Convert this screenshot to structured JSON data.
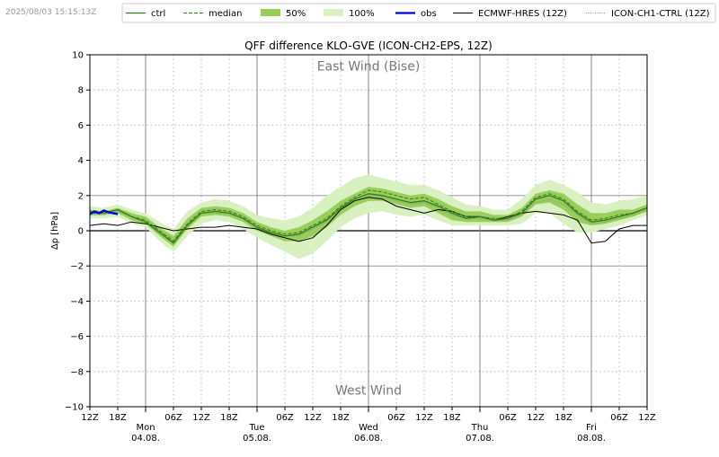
{
  "timestamp": "2025/08/03 15:15:13Z",
  "chart_data": {
    "type": "line",
    "title": "QFF difference KLO-GVE (ICON-CH2-EPS, 12Z)",
    "xlabel": "",
    "ylabel": "Δp [hPa]",
    "ylim": [
      -10,
      10
    ],
    "yticks": [
      -10,
      -8,
      -6,
      -4,
      -2,
      0,
      2,
      4,
      6,
      8,
      10
    ],
    "xlim_hours": [
      0,
      120
    ],
    "x_unit": "hours since 2025-08-03 12Z",
    "hour_ticks": [
      {
        "h": 0,
        "label": "12Z"
      },
      {
        "h": 6,
        "label": "18Z"
      },
      {
        "h": 18,
        "label": "06Z"
      },
      {
        "h": 24,
        "label": "12Z"
      },
      {
        "h": 30,
        "label": "18Z"
      },
      {
        "h": 42,
        "label": "06Z"
      },
      {
        "h": 48,
        "label": "12Z"
      },
      {
        "h": 54,
        "label": "18Z"
      },
      {
        "h": 66,
        "label": "06Z"
      },
      {
        "h": 72,
        "label": "12Z"
      },
      {
        "h": 78,
        "label": "18Z"
      },
      {
        "h": 90,
        "label": "06Z"
      },
      {
        "h": 96,
        "label": "12Z"
      },
      {
        "h": 102,
        "label": "18Z"
      },
      {
        "h": 114,
        "label": "06Z"
      },
      {
        "h": 120,
        "label": "12Z"
      }
    ],
    "day_ticks": [
      {
        "h": 12,
        "day": "Mon",
        "date": "04.08."
      },
      {
        "h": 36,
        "day": "Tue",
        "date": "05.08."
      },
      {
        "h": 60,
        "day": "Wed",
        "date": "06.08."
      },
      {
        "h": 84,
        "day": "Thu",
        "date": "07.08."
      },
      {
        "h": 108,
        "day": "Fri",
        "date": "08.08."
      }
    ],
    "annotations": {
      "top": "East Wind (Bise)",
      "bottom": "West Wind"
    },
    "legend": {
      "placement": "top",
      "entries": [
        "ctrl",
        "median",
        "50%",
        "100%",
        "obs",
        "ECMWF-HRES (12Z)",
        "ICON-CH1-CTRL (12Z)"
      ]
    },
    "colors": {
      "ctrl": "#2e7d1e",
      "median": "#2e7d1e",
      "p50": "#9acd5a",
      "p100": "#d9f0c0",
      "obs": "#0000dd",
      "ecmwf": "#000000",
      "iconch1": "#888888"
    },
    "x": [
      0,
      3,
      6,
      9,
      12,
      15,
      18,
      21,
      24,
      27,
      30,
      33,
      36,
      39,
      42,
      45,
      48,
      51,
      54,
      57,
      60,
      63,
      66,
      69,
      72,
      75,
      78,
      81,
      84,
      87,
      90,
      93,
      96,
      99,
      102,
      105,
      108,
      111,
      114,
      117,
      120
    ],
    "series": {
      "ctrl": [
        1.0,
        1.0,
        1.2,
        0.8,
        0.5,
        -0.1,
        -0.7,
        0.3,
        1.0,
        1.1,
        1.0,
        0.7,
        0.2,
        -0.1,
        -0.3,
        -0.2,
        0.2,
        0.6,
        1.3,
        1.8,
        2.1,
        2.0,
        1.8,
        1.6,
        1.7,
        1.4,
        1.0,
        0.7,
        0.8,
        0.6,
        0.7,
        1.0,
        1.8,
        2.0,
        1.7,
        1.0,
        0.5,
        0.6,
        0.8,
        1.0,
        1.3
      ],
      "median": [
        1.1,
        1.0,
        1.2,
        0.8,
        0.6,
        0.0,
        -0.6,
        0.4,
        1.1,
        1.2,
        1.1,
        0.8,
        0.3,
        0.0,
        -0.2,
        -0.1,
        0.3,
        0.7,
        1.4,
        1.9,
        2.3,
        2.2,
        2.0,
        1.8,
        1.9,
        1.5,
        1.1,
        0.8,
        0.8,
        0.7,
        0.7,
        1.1,
        1.9,
        2.1,
        1.8,
        1.1,
        0.6,
        0.7,
        0.9,
        1.0,
        1.3
      ],
      "p50_low": [
        0.9,
        0.9,
        1.0,
        0.6,
        0.4,
        -0.3,
        -0.9,
        0.1,
        0.8,
        0.9,
        0.8,
        0.5,
        0.0,
        -0.3,
        -0.6,
        -0.6,
        -0.3,
        0.2,
        0.9,
        1.4,
        1.7,
        1.7,
        1.5,
        1.3,
        1.4,
        1.0,
        0.6,
        0.5,
        0.5,
        0.5,
        0.5,
        0.8,
        1.5,
        1.6,
        1.2,
        0.5,
        0.3,
        0.4,
        0.6,
        0.8,
        1.1
      ],
      "p50_high": [
        1.2,
        1.1,
        1.3,
        1.0,
        0.8,
        0.2,
        -0.3,
        0.7,
        1.3,
        1.4,
        1.3,
        1.0,
        0.5,
        0.2,
        0.0,
        0.2,
        0.6,
        1.1,
        1.7,
        2.1,
        2.5,
        2.4,
        2.2,
        2.0,
        2.1,
        1.8,
        1.4,
        1.1,
        1.1,
        0.9,
        0.9,
        1.3,
        2.1,
        2.3,
        2.1,
        1.5,
        1.0,
        1.0,
        1.2,
        1.2,
        1.5
      ],
      "p100_low": [
        0.7,
        0.7,
        0.8,
        0.4,
        0.2,
        -0.6,
        -1.2,
        -0.3,
        0.4,
        0.6,
        0.5,
        0.1,
        -0.4,
        -0.8,
        -1.2,
        -1.6,
        -1.3,
        -0.6,
        0.2,
        0.7,
        1.0,
        1.1,
        0.9,
        0.8,
        0.9,
        0.6,
        0.3,
        0.3,
        0.3,
        0.3,
        0.3,
        0.4,
        1.0,
        1.0,
        0.4,
        -0.1,
        -0.1,
        0.1,
        0.3,
        0.6,
        0.9
      ],
      "p100_high": [
        1.4,
        1.3,
        1.5,
        1.2,
        1.0,
        0.5,
        0.1,
        1.1,
        1.6,
        1.8,
        1.7,
        1.4,
        0.9,
        0.7,
        0.6,
        0.8,
        1.3,
        2.0,
        2.5,
        3.0,
        3.2,
        3.0,
        2.8,
        2.6,
        2.6,
        2.3,
        1.9,
        1.5,
        1.4,
        1.2,
        1.2,
        1.8,
        2.6,
        2.9,
        2.6,
        2.2,
        1.6,
        1.5,
        1.7,
        1.8,
        2.0
      ],
      "ecmwf": [
        0.3,
        0.4,
        0.3,
        0.5,
        0.4,
        0.2,
        0.0,
        0.1,
        0.2,
        0.2,
        0.3,
        0.2,
        0.1,
        -0.2,
        -0.4,
        -0.6,
        -0.4,
        0.3,
        1.2,
        1.7,
        1.9,
        1.8,
        1.4,
        1.2,
        1.0,
        1.2,
        1.1,
        0.8,
        0.8,
        0.6,
        0.8,
        1.0,
        1.1,
        1.0,
        0.9,
        0.6,
        -0.7,
        -0.6,
        0.1,
        0.3,
        0.3
      ],
      "iconch1": [
        0.9,
        0.9,
        1.1,
        0.8,
        0.5,
        0.0,
        -0.5,
        0.3,
        1.0,
        1.0,
        1.0,
        0.7,
        0.2,
        -0.1,
        -0.3,
        -0.3,
        0.1,
        0.5,
        1.2,
        1.7,
        2.0,
        1.9,
        1.7,
        1.5,
        1.6,
        1.3,
        0.9,
        0.7,
        0.7,
        0.6,
        0.6,
        0.9,
        1.6,
        1.8,
        1.5,
        0.9,
        0.4,
        0.5,
        0.7,
        0.9,
        1.2
      ]
    },
    "obs": {
      "x": [
        0,
        1,
        2,
        3,
        4,
        5,
        6
      ],
      "y": [
        0.95,
        1.1,
        1.0,
        1.15,
        1.05,
        1.0,
        0.95
      ]
    }
  }
}
